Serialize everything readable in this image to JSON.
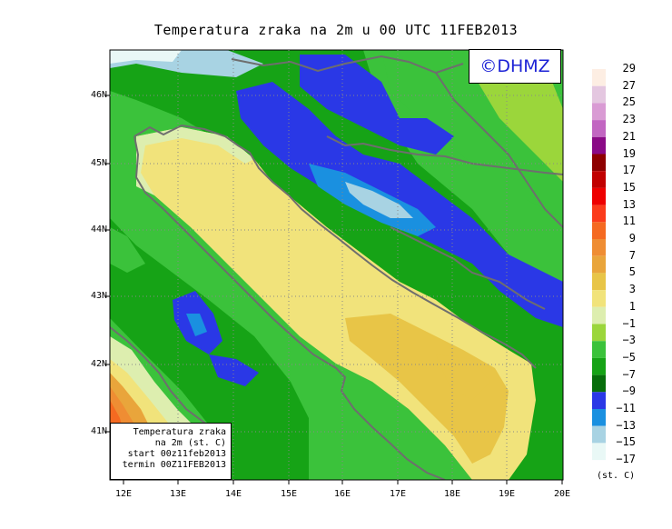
{
  "title": "Temperatura zraka na 2m u 00 UTC 11FEB2013",
  "logo": "©DHMZ",
  "infobox": {
    "line1": "Temperatura zraka",
    "line2": "na 2m (st. C)",
    "line3": "start 00z11feb2013",
    "line4": "termin 00Z11FEB2013"
  },
  "lat_labels": [
    "46N",
    "45N",
    "44N",
    "43N",
    "42N",
    "41N"
  ],
  "lon_labels": [
    "12E",
    "13E",
    "14E",
    "15E",
    "16E",
    "17E",
    "18E",
    "19E",
    "20E"
  ],
  "colorbar": {
    "unit": "(st. C)",
    "levels": [
      {
        "label": "29",
        "color": "#fdeee3"
      },
      {
        "label": "27",
        "color": "#e4c7e0"
      },
      {
        "label": "25",
        "color": "#d99bd4"
      },
      {
        "label": "23",
        "color": "#c266c2"
      },
      {
        "label": "21",
        "color": "#8a0a86"
      },
      {
        "label": "19",
        "color": "#8e0000"
      },
      {
        "label": "17",
        "color": "#c10000"
      },
      {
        "label": "15",
        "color": "#ee0000"
      },
      {
        "label": "13",
        "color": "#fb3b1b"
      },
      {
        "label": "11",
        "color": "#f56a21"
      },
      {
        "label": "9",
        "color": "#ef8d33"
      },
      {
        "label": "7",
        "color": "#e9a53b"
      },
      {
        "label": "5",
        "color": "#e8c547"
      },
      {
        "label": "3",
        "color": "#f1e37b"
      },
      {
        "label": "1",
        "color": "#ddeeaf"
      },
      {
        "label": "−1",
        "color": "#9bd63b"
      },
      {
        "label": "−3",
        "color": "#3bc23b"
      },
      {
        "label": "−5",
        "color": "#16a316"
      },
      {
        "label": "−7",
        "color": "#076e0b"
      },
      {
        "label": "−9",
        "color": "#2a38e6"
      },
      {
        "label": "−11",
        "color": "#1a90e0"
      },
      {
        "label": "−13",
        "color": "#a8d3e3"
      },
      {
        "label": "−15",
        "color": "#e9f8f6"
      },
      {
        "label": "−17",
        "color": ""
      }
    ]
  }
}
